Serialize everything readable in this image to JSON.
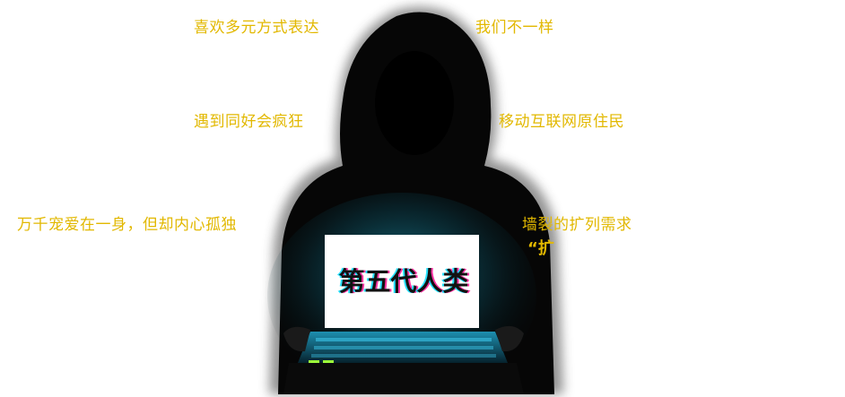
{
  "phrases": [
    "喜欢多元方式表达",
    "我们不一样",
    "遇到同好会疯狂",
    "移动互联网原住民",
    "万千宠爱在一身，但却内心孤独",
    "墙裂的扩列需求"
  ],
  "screen_title": "第五代人类",
  "quote_fragment": "“扩",
  "colors": {
    "phrase_text": "#e2b800",
    "silhouette": "#050505",
    "screen_glow": "#27d9ff",
    "screen": "#ffffff"
  }
}
